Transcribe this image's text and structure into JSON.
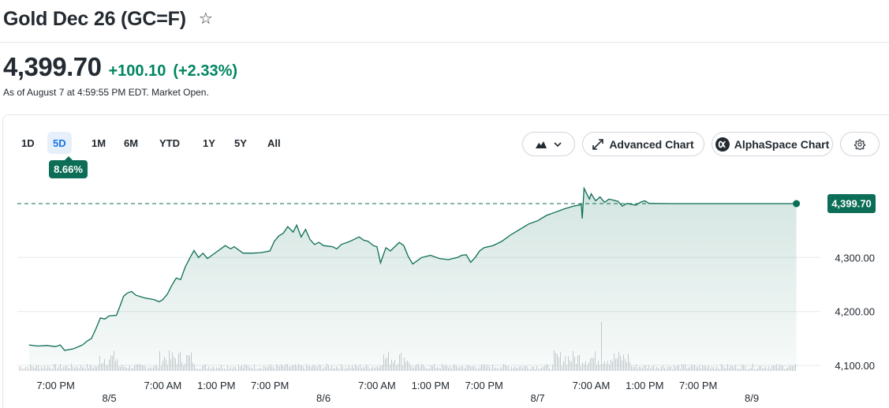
{
  "header": {
    "title": "Gold Dec 26 (GC=F)",
    "star_icon": "star-outline-icon"
  },
  "quote": {
    "price": "4,399.70",
    "change": "+100.10",
    "change_percent": "(+2.33%)",
    "as_of": "As of August 7 at 4:59:55 PM EDT. Market Open.",
    "up_color": "#008560"
  },
  "range": {
    "tabs": [
      "1D",
      "5D",
      "1M",
      "6M",
      "YTD",
      "1Y",
      "5Y",
      "All"
    ],
    "active": "5D",
    "period_change": "8.66%"
  },
  "toolbar": {
    "chart_type_icon": "mountain-chart-icon",
    "advanced_chart_label": "Advanced Chart",
    "alphaspace_chart_label": "AlphaSpace Chart",
    "settings_icon": "gear-icon"
  },
  "chart_data": {
    "type": "area",
    "title": "",
    "xlabel": "",
    "ylabel": "",
    "line_color": "#0c6e56",
    "ylim": [
      4090,
      4445
    ],
    "y_ticks": [
      {
        "value": 4300,
        "label": "4,300.00"
      },
      {
        "value": 4200,
        "label": "4,200.00"
      },
      {
        "value": 4100,
        "label": "4,100.00"
      }
    ],
    "x_ticks": [
      {
        "label": "7:00 PM",
        "x": 3.0
      },
      {
        "label": "7:00 AM",
        "x": 15.0
      },
      {
        "label": "1:00 PM",
        "x": 21.0
      },
      {
        "label": "7:00 PM",
        "x": 27.0
      },
      {
        "label": "7:00 AM",
        "x": 39.0
      },
      {
        "label": "1:00 PM",
        "x": 45.0
      },
      {
        "label": "7:00 PM",
        "x": 51.0
      },
      {
        "label": "7:00 AM",
        "x": 63.0
      },
      {
        "label": "1:00 PM",
        "x": 69.0
      },
      {
        "label": "7:00 PM",
        "x": 75.0
      }
    ],
    "date_ticks": [
      {
        "label": "8/5",
        "x": 9.0
      },
      {
        "label": "8/6",
        "x": 33.0
      },
      {
        "label": "8/7",
        "x": 57.0
      },
      {
        "label": "8/9",
        "x": 81.0
      }
    ],
    "x_domain": [
      -1.3,
      87.8
    ],
    "last_value": 4399.7,
    "last_value_label": "4,399.70",
    "series": [
      {
        "values": [
          [
            0,
            4138
          ],
          [
            1,
            4136
          ],
          [
            2,
            4137
          ],
          [
            3,
            4135
          ],
          [
            3.5,
            4138
          ],
          [
            4,
            4128
          ],
          [
            5,
            4131
          ],
          [
            6,
            4138
          ],
          [
            6.5,
            4145
          ],
          [
            7,
            4150
          ],
          [
            7.5,
            4168
          ],
          [
            8,
            4188
          ],
          [
            8.5,
            4186
          ],
          [
            9,
            4192
          ],
          [
            9.8,
            4193
          ],
          [
            10.2,
            4210
          ],
          [
            10.6,
            4228
          ],
          [
            11,
            4234
          ],
          [
            11.5,
            4237
          ],
          [
            12,
            4230
          ],
          [
            13,
            4225
          ],
          [
            14,
            4222
          ],
          [
            14.6,
            4218
          ],
          [
            15,
            4222
          ],
          [
            15.5,
            4232
          ],
          [
            16,
            4248
          ],
          [
            16.5,
            4262
          ],
          [
            17,
            4259
          ],
          [
            17.5,
            4282
          ],
          [
            18,
            4298
          ],
          [
            18.5,
            4313
          ],
          [
            19,
            4300
          ],
          [
            19.5,
            4308
          ],
          [
            20,
            4298
          ],
          [
            21,
            4310
          ],
          [
            22,
            4322
          ],
          [
            22.6,
            4316
          ],
          [
            23,
            4320
          ],
          [
            24,
            4308
          ],
          [
            25,
            4308
          ],
          [
            26,
            4309
          ],
          [
            27,
            4312
          ],
          [
            27.5,
            4330
          ],
          [
            28,
            4340
          ],
          [
            28.5,
            4345
          ],
          [
            29,
            4357
          ],
          [
            29.6,
            4347
          ],
          [
            30,
            4360
          ],
          [
            30.5,
            4338
          ],
          [
            31,
            4352
          ],
          [
            31.5,
            4333
          ],
          [
            32,
            4324
          ],
          [
            32.5,
            4328
          ],
          [
            33,
            4322
          ],
          [
            34,
            4320
          ],
          [
            34.5,
            4316
          ],
          [
            35,
            4324
          ],
          [
            36,
            4330
          ],
          [
            37,
            4338
          ],
          [
            37.5,
            4332
          ],
          [
            38,
            4330
          ],
          [
            38.6,
            4322
          ],
          [
            39,
            4320
          ],
          [
            39.4,
            4290
          ],
          [
            40,
            4318
          ],
          [
            40.5,
            4312
          ],
          [
            41,
            4320
          ],
          [
            41.5,
            4328
          ],
          [
            42,
            4322
          ],
          [
            42.5,
            4302
          ],
          [
            43,
            4288
          ],
          [
            44,
            4300
          ],
          [
            45,
            4304
          ],
          [
            46,
            4298
          ],
          [
            47,
            4296
          ],
          [
            48,
            4300
          ],
          [
            48.5,
            4304
          ],
          [
            49,
            4305
          ],
          [
            49.5,
            4291
          ],
          [
            50,
            4300
          ],
          [
            50.5,
            4312
          ],
          [
            51,
            4318
          ],
          [
            52,
            4322
          ],
          [
            53,
            4330
          ],
          [
            54,
            4342
          ],
          [
            55,
            4352
          ],
          [
            56,
            4362
          ],
          [
            57,
            4368
          ],
          [
            58,
            4378
          ],
          [
            59,
            4384
          ],
          [
            60,
            4390
          ],
          [
            61,
            4395
          ],
          [
            61.9,
            4398
          ],
          [
            62,
            4372
          ],
          [
            62.2,
            4428
          ],
          [
            62.8,
            4408
          ],
          [
            63,
            4418
          ],
          [
            63.5,
            4405
          ],
          [
            64,
            4412
          ],
          [
            64.5,
            4402
          ],
          [
            65,
            4408
          ],
          [
            66,
            4404
          ],
          [
            66.5,
            4395
          ],
          [
            67,
            4400
          ],
          [
            68,
            4397
          ],
          [
            68.5,
            4402
          ],
          [
            69,
            4405
          ],
          [
            69.5,
            4400
          ],
          [
            70,
            4400
          ],
          [
            72,
            4399.7
          ],
          [
            76,
            4399.7
          ],
          [
            80,
            4399.7
          ],
          [
            84,
            4399.7
          ],
          [
            86,
            4399.7
          ]
        ]
      }
    ]
  }
}
